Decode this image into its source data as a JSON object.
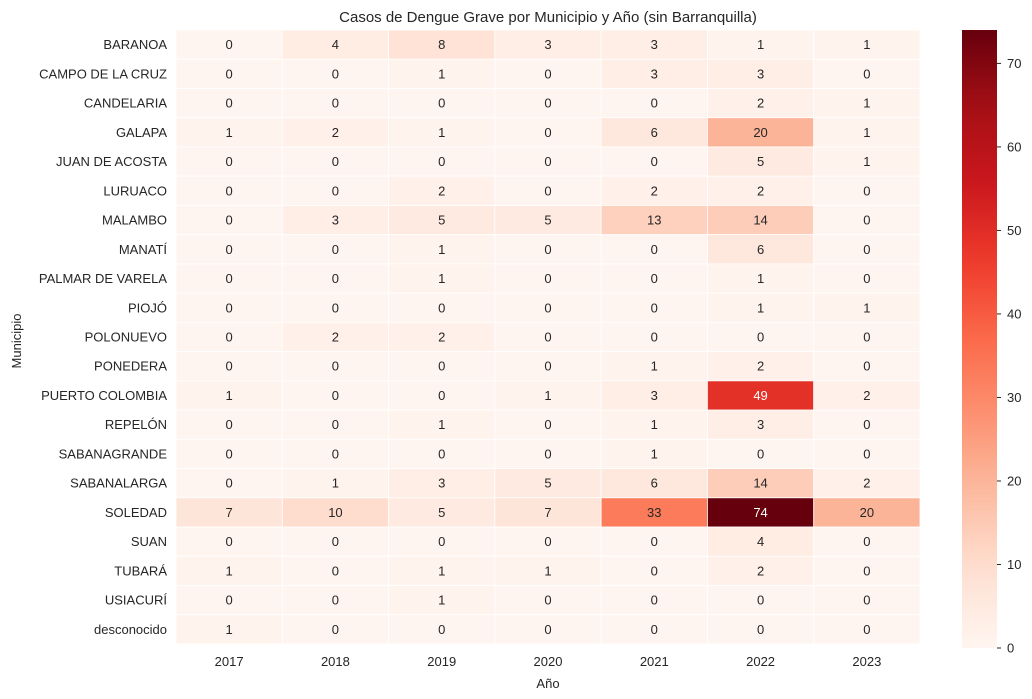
{
  "chart_data": {
    "type": "heatmap",
    "title": "Casos de Dengue Grave por Municipio y Año (sin Barranquilla)",
    "xlabel": "Año",
    "ylabel": "Municipio",
    "x": [
      "2017",
      "2018",
      "2019",
      "2020",
      "2021",
      "2022",
      "2023"
    ],
    "y": [
      "BARANOA",
      "CAMPO DE LA CRUZ",
      "CANDELARIA",
      "GALAPA",
      "JUAN DE ACOSTA",
      "LURUACO",
      "MALAMBO",
      "MANATÍ",
      "PALMAR DE VARELA",
      "PIOJÓ",
      "POLONUEVO",
      "PONEDERA",
      "PUERTO COLOMBIA",
      "REPELÓN",
      "SABANAGRANDE",
      "SABANALARGA",
      "SOLEDAD",
      "SUAN",
      "TUBARÁ",
      "USIACURÍ",
      "desconocido"
    ],
    "values": [
      [
        0,
        4,
        8,
        3,
        3,
        1,
        1
      ],
      [
        0,
        0,
        1,
        0,
        3,
        3,
        0
      ],
      [
        0,
        0,
        0,
        0,
        0,
        2,
        1
      ],
      [
        1,
        2,
        1,
        0,
        6,
        20,
        1
      ],
      [
        0,
        0,
        0,
        0,
        0,
        5,
        1
      ],
      [
        0,
        0,
        2,
        0,
        2,
        2,
        0
      ],
      [
        0,
        3,
        5,
        5,
        13,
        14,
        0
      ],
      [
        0,
        0,
        1,
        0,
        0,
        6,
        0
      ],
      [
        0,
        0,
        1,
        0,
        0,
        1,
        0
      ],
      [
        0,
        0,
        0,
        0,
        0,
        1,
        1
      ],
      [
        0,
        2,
        2,
        0,
        0,
        0,
        0
      ],
      [
        0,
        0,
        0,
        0,
        1,
        2,
        0
      ],
      [
        1,
        0,
        0,
        1,
        3,
        49,
        2
      ],
      [
        0,
        0,
        1,
        0,
        1,
        3,
        0
      ],
      [
        0,
        0,
        0,
        0,
        1,
        0,
        0
      ],
      [
        0,
        1,
        3,
        5,
        6,
        14,
        2
      ],
      [
        7,
        10,
        5,
        7,
        33,
        74,
        20
      ],
      [
        0,
        0,
        0,
        0,
        0,
        4,
        0
      ],
      [
        1,
        0,
        1,
        1,
        0,
        2,
        0
      ],
      [
        0,
        0,
        1,
        0,
        0,
        0,
        0
      ],
      [
        1,
        0,
        0,
        0,
        0,
        0,
        0
      ]
    ],
    "colorbar": {
      "colormap": "Reds",
      "vmin": 0,
      "vmax": 74,
      "ticks": [
        0,
        10,
        20,
        30,
        40,
        50,
        60,
        70
      ]
    },
    "annotations": true,
    "grid": false
  }
}
